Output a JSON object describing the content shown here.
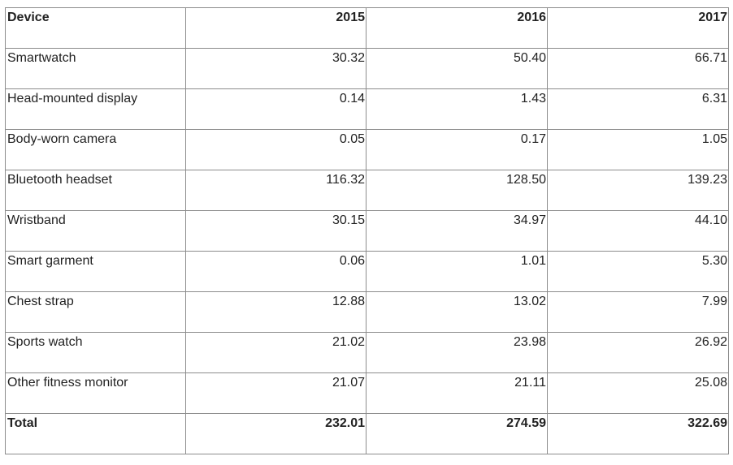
{
  "table": {
    "headers": [
      "Device",
      "2015",
      "2016",
      "2017"
    ],
    "rows": [
      [
        "Smartwatch",
        "30.32",
        "50.40",
        "66.71"
      ],
      [
        "Head-mounted display",
        "0.14",
        "1.43",
        "6.31"
      ],
      [
        "Body-worn camera",
        "0.05",
        "0.17",
        "1.05"
      ],
      [
        "Bluetooth headset",
        "116.32",
        "128.50",
        "139.23"
      ],
      [
        "Wristband",
        "30.15",
        "34.97",
        "44.10"
      ],
      [
        "Smart garment",
        "0.06",
        "1.01",
        "5.30"
      ],
      [
        "Chest strap",
        "12.88",
        "13.02",
        "7.99"
      ],
      [
        "Sports watch",
        "21.02",
        "23.98",
        "26.92"
      ],
      [
        "Other fitness monitor",
        "21.07",
        "21.11",
        "25.08"
      ]
    ],
    "total": [
      "Total",
      "232.01",
      "274.59",
      "322.69"
    ]
  },
  "colors": {
    "border": "#8c8c8c",
    "text": "#222222",
    "background": "#ffffff"
  }
}
